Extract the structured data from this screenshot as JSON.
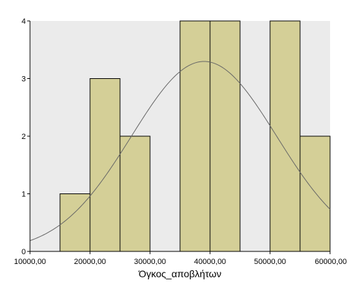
{
  "chart_data": {
    "type": "bar",
    "title": "",
    "xlabel": "Όγκος_αποβλήτων",
    "ylabel": "",
    "xlim": [
      10000,
      60000
    ],
    "ylim": [
      0,
      4
    ],
    "x_ticks": [
      "10000,00",
      "20000,00",
      "30000,00",
      "40000,00",
      "50000,00",
      "60000,00"
    ],
    "y_ticks": [
      "0",
      "1",
      "2",
      "3",
      "4"
    ],
    "bins": [
      {
        "from": 15000,
        "to": 20000,
        "count": 1
      },
      {
        "from": 20000,
        "to": 25000,
        "count": 3
      },
      {
        "from": 25000,
        "to": 30000,
        "count": 2
      },
      {
        "from": 35000,
        "to": 40000,
        "count": 4
      },
      {
        "from": 40000,
        "to": 45000,
        "count": 4
      },
      {
        "from": 50000,
        "to": 55000,
        "count": 4
      },
      {
        "from": 55000,
        "to": 60000,
        "count": 2
      }
    ],
    "normal_curve": {
      "mean": 39000,
      "sd": 12100,
      "n": 20,
      "bin_width": 5000
    },
    "grid": false,
    "colors": {
      "plot_background": "#ebebeb",
      "bar_fill": "#d4cf97",
      "bar_stroke": "#000000",
      "curve": "#666666"
    }
  }
}
